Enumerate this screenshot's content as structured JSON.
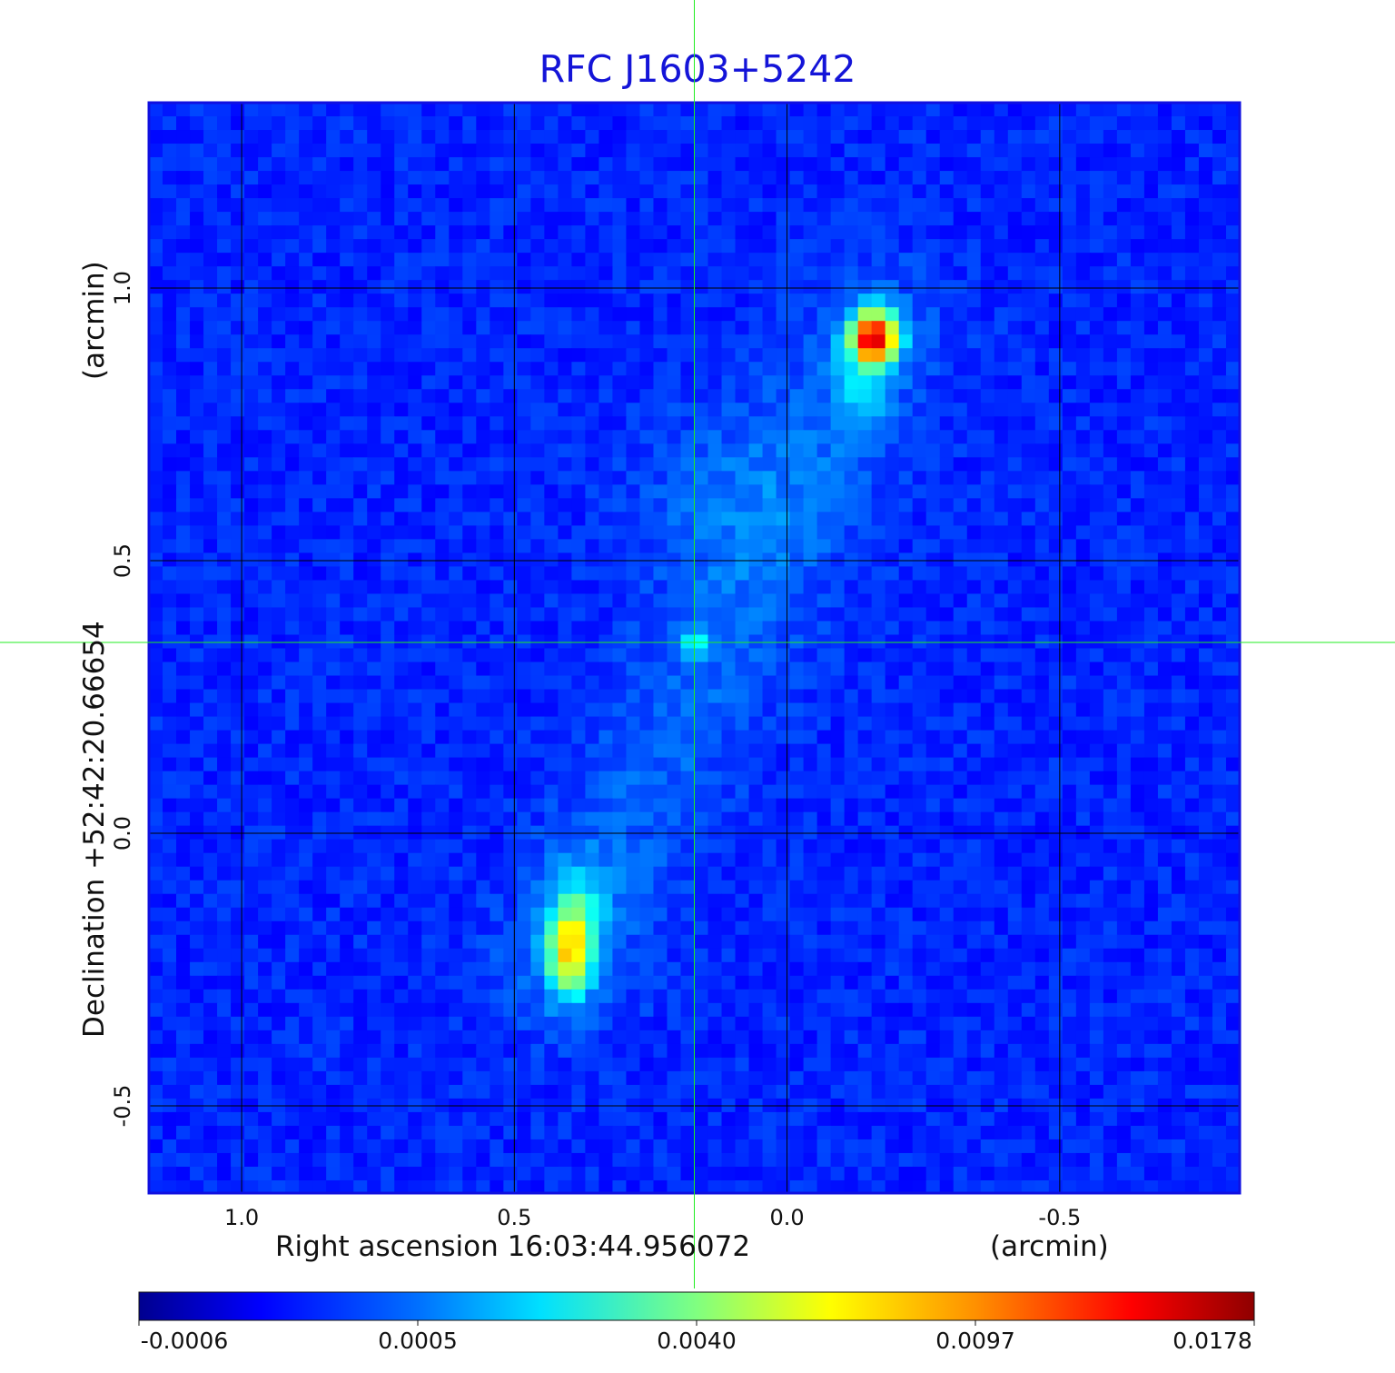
{
  "chart_data": {
    "type": "heatmap",
    "title": "RFC J1603+5242",
    "xlabel": "Right ascension  16:03:44.956072",
    "xunit": "(arcmin)",
    "ylabel": "Declination  +52:42:20.66654",
    "yunit": "(arcmin)",
    "x_ticks": [
      "1.0",
      "0.5",
      "0.0",
      "-0.5"
    ],
    "x_tick_values": [
      1.0,
      0.5,
      0.0,
      -0.5
    ],
    "y_ticks": [
      "1.0",
      "0.5",
      "0.0",
      "-0.5"
    ],
    "y_tick_values": [
      1.0,
      0.5,
      0.0,
      -0.5
    ],
    "xlim": [
      1.17,
      -0.83
    ],
    "ylim": [
      -0.66,
      1.34
    ],
    "crosshair": {
      "x": 0.17,
      "y": 0.35
    },
    "colorbar": {
      "ticks": [
        "-0.0006",
        "0.0005",
        "0.0040",
        "0.0097",
        "0.0178"
      ],
      "colormap": "jet"
    },
    "sources": [
      {
        "x": -0.16,
        "y": 0.92,
        "peak": 0.0178
      },
      {
        "x": 0.41,
        "y": -0.23,
        "peak": 0.0075
      },
      {
        "x": 0.17,
        "y": 0.35,
        "peak": 0.0028
      }
    ],
    "grid": true
  },
  "colors": {
    "title": "#1414d8",
    "frame": "#1010e0",
    "crosshair": "#22ee22",
    "grid": "#000000"
  }
}
